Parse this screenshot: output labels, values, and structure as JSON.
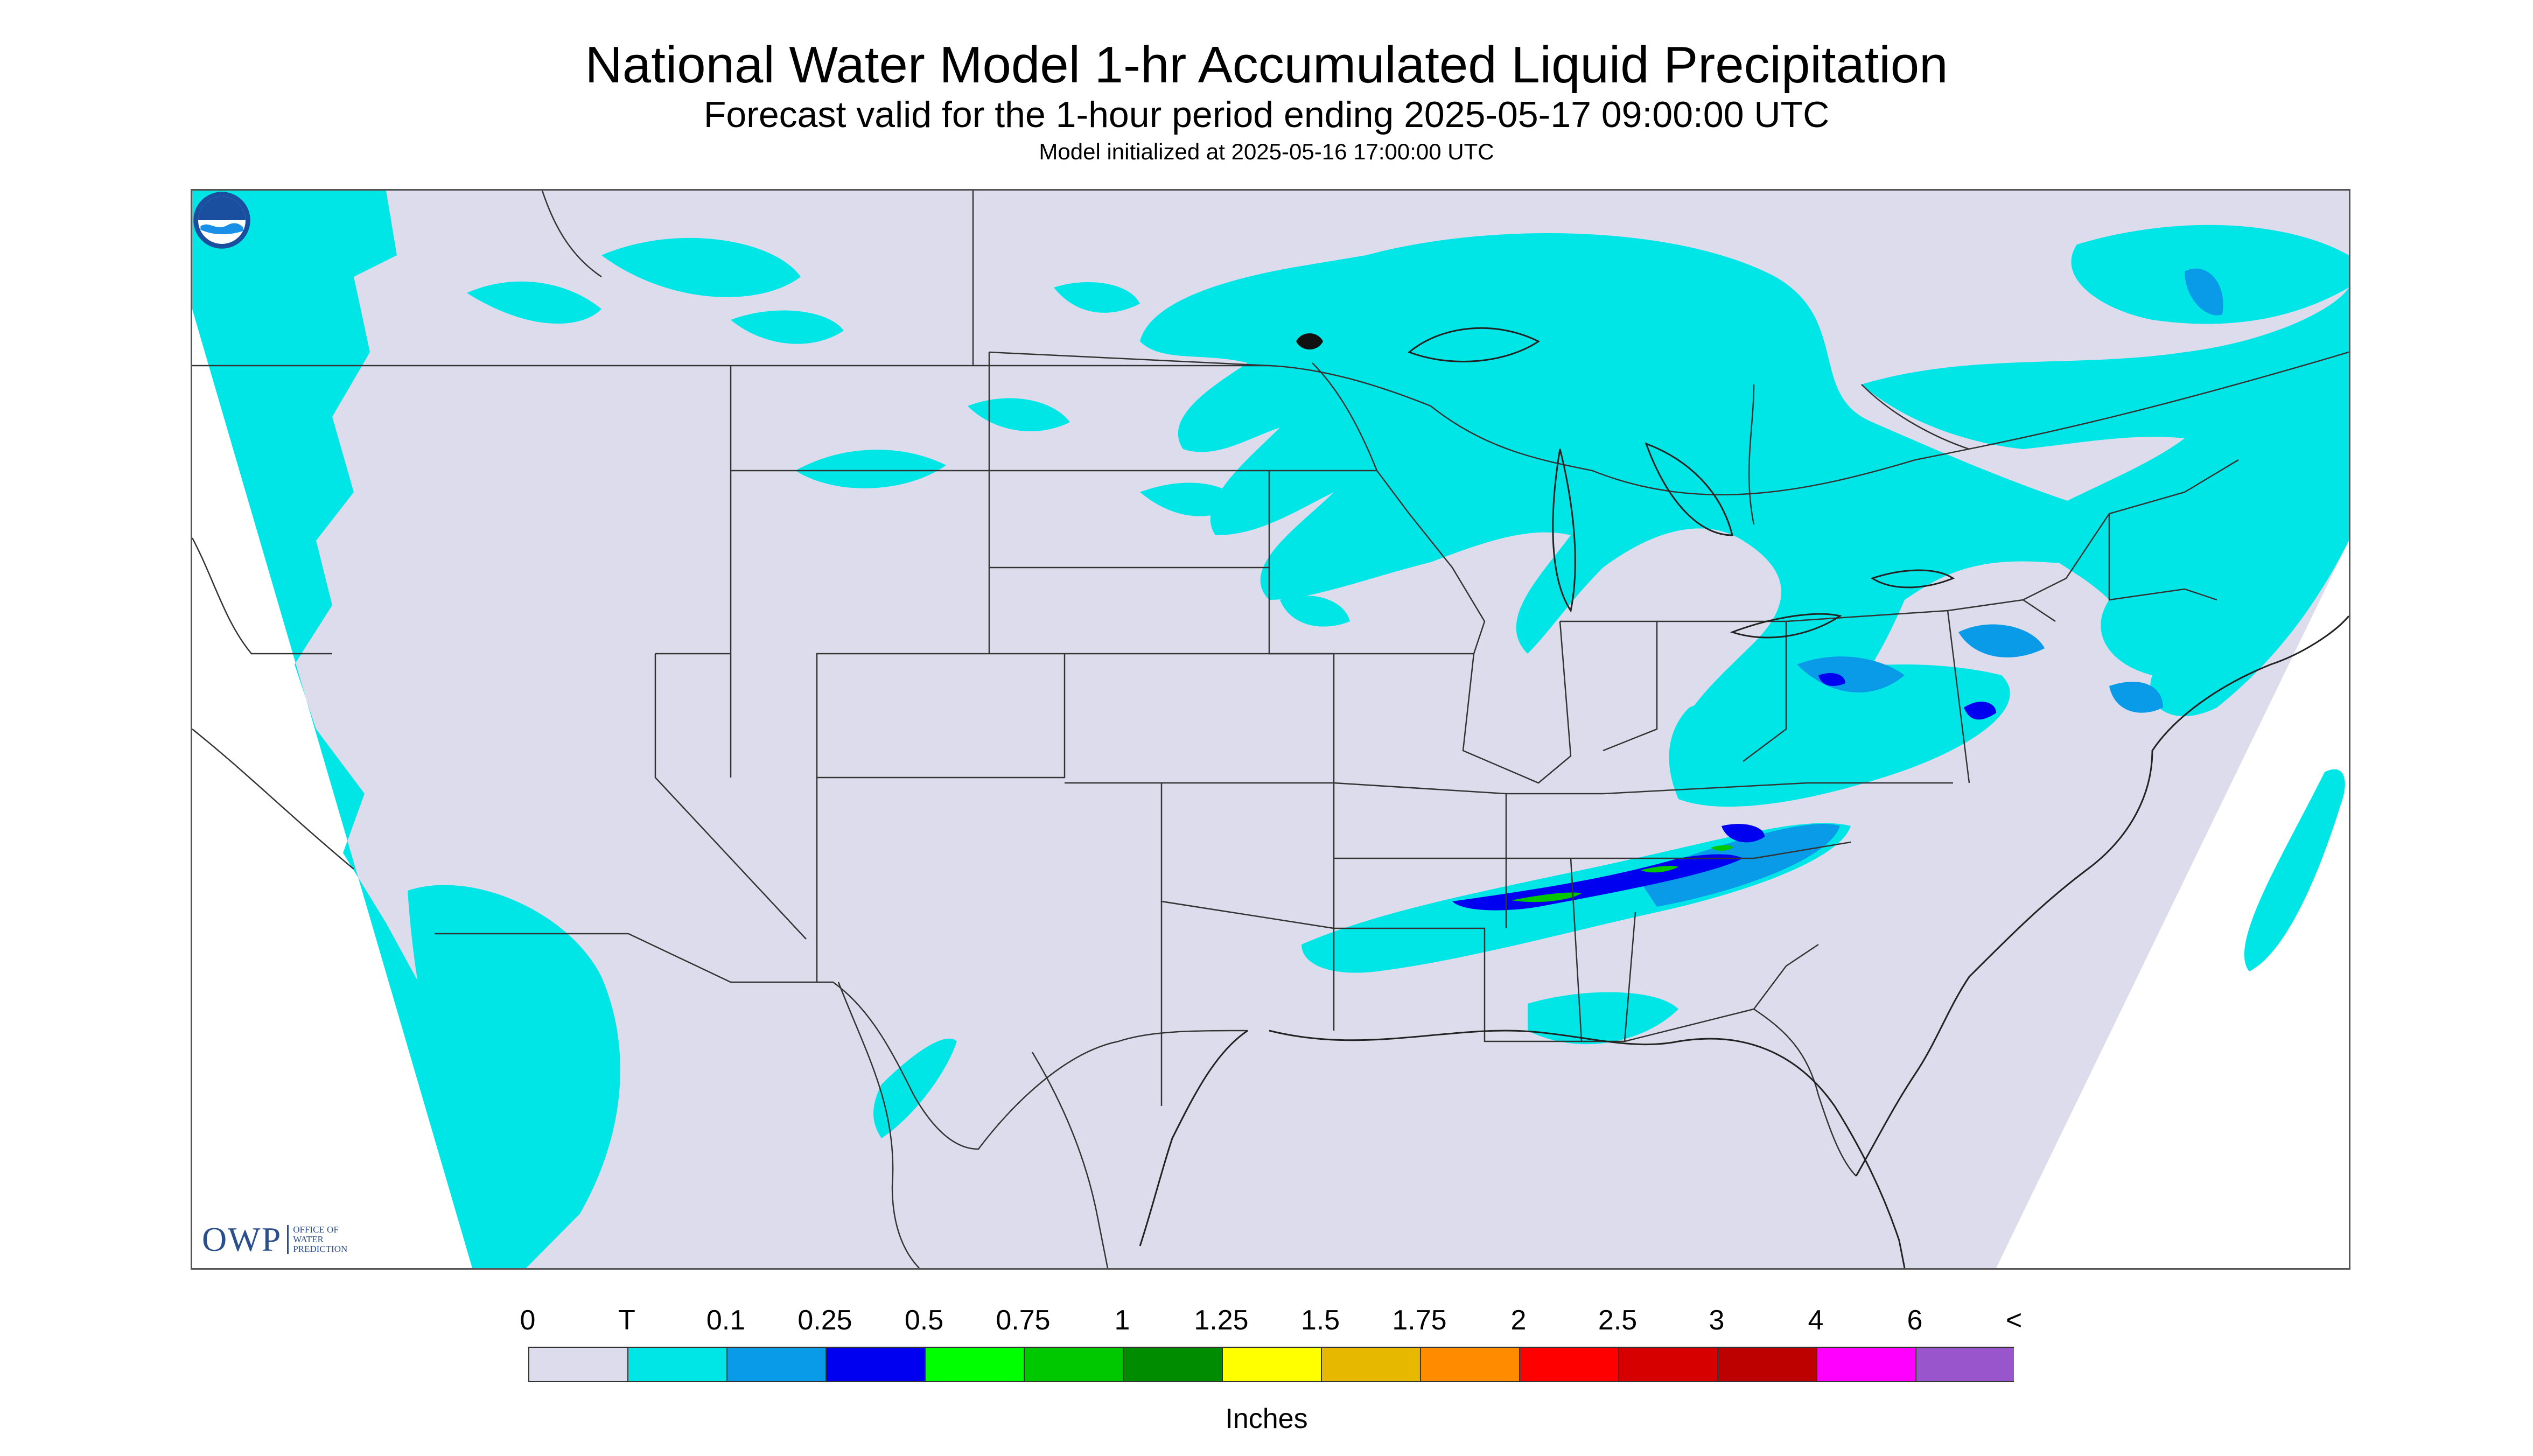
{
  "title": "National Water Model 1-hr Accumulated Liquid Precipitation",
  "subtitle": "Forecast valid for the 1-hour period ending 2025-05-17 09:00:00 UTC",
  "init_line": "Model initialized at 2025-05-16 17:00:00 UTC",
  "logos": {
    "owp_word": "OWP",
    "owp_text": "OFFICE OF WATER PREDICTION",
    "noaa": "NOAA"
  },
  "legend": {
    "units": "Inches",
    "labels": [
      "0",
      "T",
      "0.1",
      "0.25",
      "0.5",
      "0.75",
      "1",
      "1.25",
      "1.5",
      "1.75",
      "2",
      "2.5",
      "3",
      "4",
      "6",
      "<"
    ],
    "colors": [
      "#dcdced",
      "#00e6e6",
      "#0a9be8",
      "#0000f0",
      "#00ff00",
      "#00c800",
      "#008c00",
      "#ffff00",
      "#e6b800",
      "#ff8c00",
      "#ff0000",
      "#d60000",
      "#bd0000",
      "#ff00ff",
      "#9955cc"
    ]
  },
  "colors": {
    "no_precip": "#dcdced",
    "trace": "#00e6e6",
    "light": "#0a9be8",
    "moderate": "#0000f0",
    "heavy": "#00c800"
  }
}
